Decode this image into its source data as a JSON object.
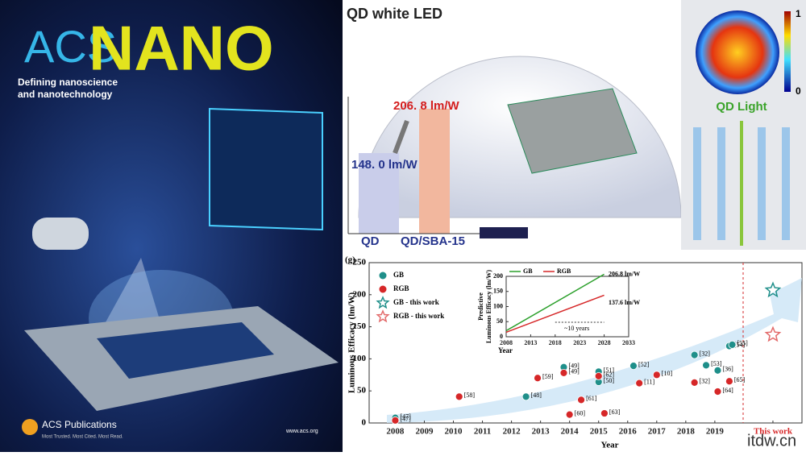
{
  "cover": {
    "logo_acs": "ACS",
    "logo_nano": "NANO",
    "tagline": [
      "Defining nanoscience",
      "and nanotechnology"
    ],
    "publisher": "ACS Publications",
    "motto": "Most Trusted. Most Cited. Most Read.",
    "url": "www.acs.org"
  },
  "illustration": {
    "title": "QD white LED",
    "efficacy_high": "206. 8 lm/W",
    "efficacy_low": "148. 0 lm/W",
    "bar_labels": [
      "QD",
      "QD/SBA-15"
    ],
    "panel_title": "QD Light",
    "colorbar": [
      "1",
      "0"
    ]
  },
  "watermark": "itdw.cn",
  "chart_data": [
    {
      "type": "scatter",
      "label": "(g)",
      "x_label": "Year",
      "y_label": "Luminous Efficacy (lm/W)",
      "xlim": [
        2007.1,
        2022
      ],
      "ylim": [
        0,
        250
      ],
      "xticks": [
        2008,
        2009,
        2010,
        2011,
        2012,
        2013,
        2014,
        2015,
        2016,
        2017,
        2018,
        2019,
        {
          "value": 2021,
          "label": "This work"
        }
      ],
      "yticks": [
        0,
        50,
        100,
        150,
        200,
        250
      ],
      "series": [
        {
          "name": "GB",
          "color": "#1f8f8a",
          "marker": "circle",
          "x": [
            2008,
            2012.5,
            2013.8,
            2015,
            2015,
            2016.2,
            2018.3,
            2018.7,
            2019.1,
            2019.5,
            2019.6
          ],
          "values": [
            8,
            41,
            87,
            80,
            64,
            89,
            106,
            90,
            82,
            120,
            122
          ],
          "point_labels": [
            "[47]",
            "[48]",
            "[49]",
            "[51]",
            "[50]",
            "[52]",
            "[32]",
            "[53]",
            "[36]",
            "[54]",
            "[55]"
          ]
        },
        {
          "name": "RGB",
          "color": "#d62728",
          "marker": "circle",
          "x": [
            2008,
            2010.2,
            2012.9,
            2013.8,
            2014,
            2014.4,
            2015,
            2015.2,
            2016.4,
            2017,
            2018.3,
            2019.1,
            2019.5
          ],
          "values": [
            4,
            41,
            70,
            78,
            13,
            36,
            73,
            15,
            62,
            75,
            63,
            49,
            65
          ],
          "point_labels": [
            "[47]",
            "[58]",
            "[59]",
            "[49]",
            "[60]",
            "[61]",
            "[62]",
            "[63]",
            "[11]",
            "[10]",
            "[32]",
            "[64]",
            "[65]"
          ]
        },
        {
          "name": "GB - this work",
          "color": "#1f8f8a",
          "marker": "star",
          "x": [
            2021
          ],
          "values": [
            206.8
          ]
        },
        {
          "name": "RGB - this work",
          "color": "#e36b6b",
          "marker": "star",
          "x": [
            2021
          ],
          "values": [
            137.6
          ]
        }
      ]
    },
    {
      "type": "line",
      "x_label": "Year",
      "y_label": [
        "Predictive",
        "Luminous Efficacy (lm/W)"
      ],
      "xlim": [
        2008,
        2033
      ],
      "ylim": [
        0,
        200
      ],
      "xticks": [
        2008,
        2013,
        2018,
        2023,
        2028,
        2033
      ],
      "yticks": [
        0,
        50,
        100,
        150,
        200
      ],
      "x": [
        2008,
        2028
      ],
      "series": [
        {
          "name": "GB",
          "color": "#2ca02c",
          "values": [
            20,
            206.8
          ]
        },
        {
          "name": "RGB",
          "color": "#d62728",
          "values": [
            15,
            137.6
          ]
        }
      ],
      "annotations": [
        "206.8 lm/W",
        "137.6 lm/W",
        "~10 years"
      ]
    }
  ]
}
